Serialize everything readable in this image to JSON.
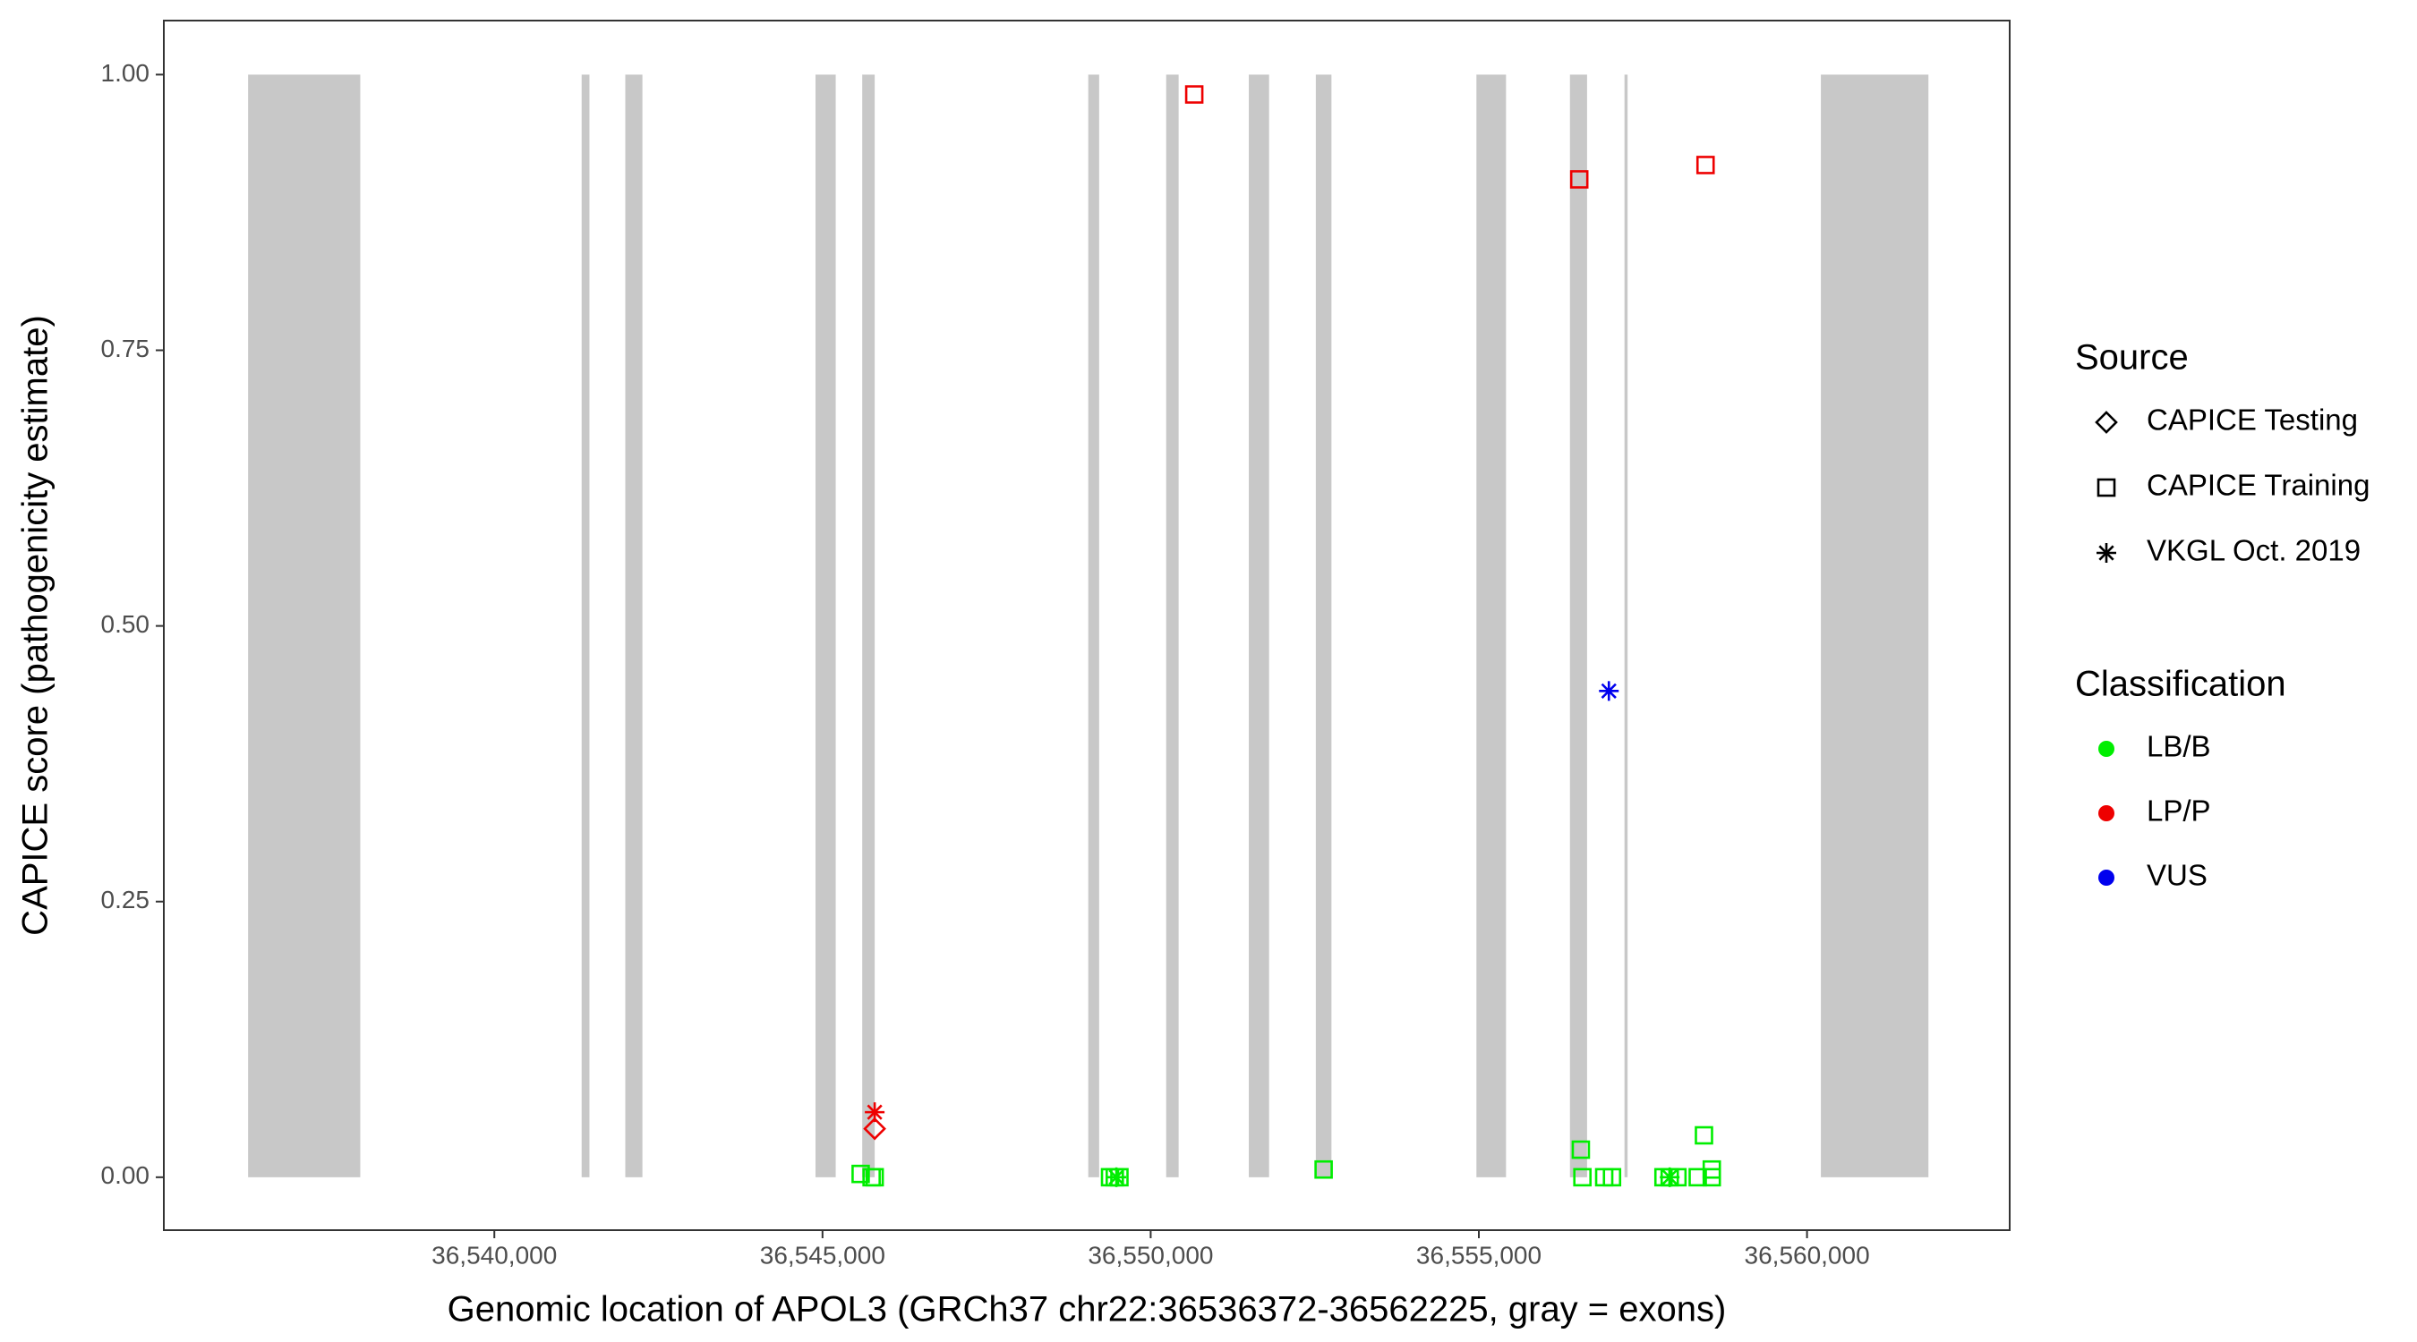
{
  "chart_data": {
    "type": "scatter",
    "x_label": "Genomic location of APOL3 (GRCh37 chr22:36536372-36562225, gray = exons)",
    "y_label": "CAPICE score (pathogenicity estimate)",
    "xlim": [
      36534964,
      36563088
    ],
    "ylim": [
      -0.048,
      1.049
    ],
    "xticks": [
      {
        "value": 36540000,
        "label": "36,540,000"
      },
      {
        "value": 36545000,
        "label": "36,545,000"
      },
      {
        "value": 36550000,
        "label": "36,550,000"
      },
      {
        "value": 36555000,
        "label": "36,555,000"
      },
      {
        "value": 36560000,
        "label": "36,560,000"
      }
    ],
    "yticks": [
      {
        "value": 0,
        "label": "0.00"
      },
      {
        "value": 0.25,
        "label": "0.25"
      },
      {
        "value": 0.5,
        "label": "0.50"
      },
      {
        "value": 0.75,
        "label": "0.75"
      },
      {
        "value": 1,
        "label": "1.00"
      }
    ],
    "exon_color": "#c8c8c8",
    "exon_y": [
      0,
      1
    ],
    "exons": [
      [
        36536248,
        36537957
      ],
      [
        36541330,
        36541449
      ],
      [
        36541995,
        36542256
      ],
      [
        36544893,
        36545201
      ],
      [
        36545605,
        36545795
      ],
      [
        36549049,
        36549215
      ],
      [
        36550236,
        36550426
      ],
      [
        36551495,
        36551804
      ],
      [
        36552516,
        36552754
      ],
      [
        36554963,
        36555414
      ],
      [
        36556388,
        36556649
      ],
      [
        36557219,
        36557266
      ],
      [
        36560211,
        36561850
      ]
    ],
    "legend_source_title": "Source",
    "legend_class_title": "Classification",
    "classes": [
      {
        "name": "LB/B",
        "color": "#00ee00"
      },
      {
        "name": "LP/P",
        "color": "#ee0000"
      },
      {
        "name": "VUS",
        "color": "#0000ee"
      }
    ],
    "series": [
      {
        "name": "CAPICE Testing",
        "shape": "diamond",
        "x": [
          36545795
        ],
        "y": [
          0.044
        ],
        "class": [
          "LP/P"
        ]
      },
      {
        "name": "CAPICE Training",
        "shape": "square",
        "x": [
          36550664,
          36556530,
          36558454,
          36545581,
          36545748,
          36545795,
          36549381,
          36549453,
          36549524,
          36552635,
          36556554,
          36556578,
          36556910,
          36557029,
          36557813,
          36557908,
          36558026,
          36558335,
          36558430,
          36558549,
          36558549
        ],
        "y": [
          0.982,
          0.905,
          0.918,
          0.003,
          0,
          0,
          0,
          0,
          0,
          0.007,
          0.025,
          0,
          0,
          0,
          0,
          0,
          0,
          0,
          0.038,
          0.007,
          0
        ],
        "class": [
          "LP/P",
          "LP/P",
          "LP/P",
          "LB/B",
          "LB/B",
          "LB/B",
          "LB/B",
          "LB/B",
          "LB/B",
          "LB/B",
          "LB/B",
          "LB/B",
          "LB/B",
          "LB/B",
          "LB/B",
          "LB/B",
          "LB/B",
          "LB/B",
          "LB/B",
          "LB/B",
          "LB/B"
        ]
      },
      {
        "name": "VKGL Oct. 2019",
        "shape": "asterisk",
        "x": [
          36545795,
          36556981,
          36549477,
          36557908
        ],
        "y": [
          0.059,
          0.441,
          0,
          0
        ],
        "class": [
          "LP/P",
          "VUS",
          "LB/B",
          "LB/B"
        ]
      }
    ]
  }
}
